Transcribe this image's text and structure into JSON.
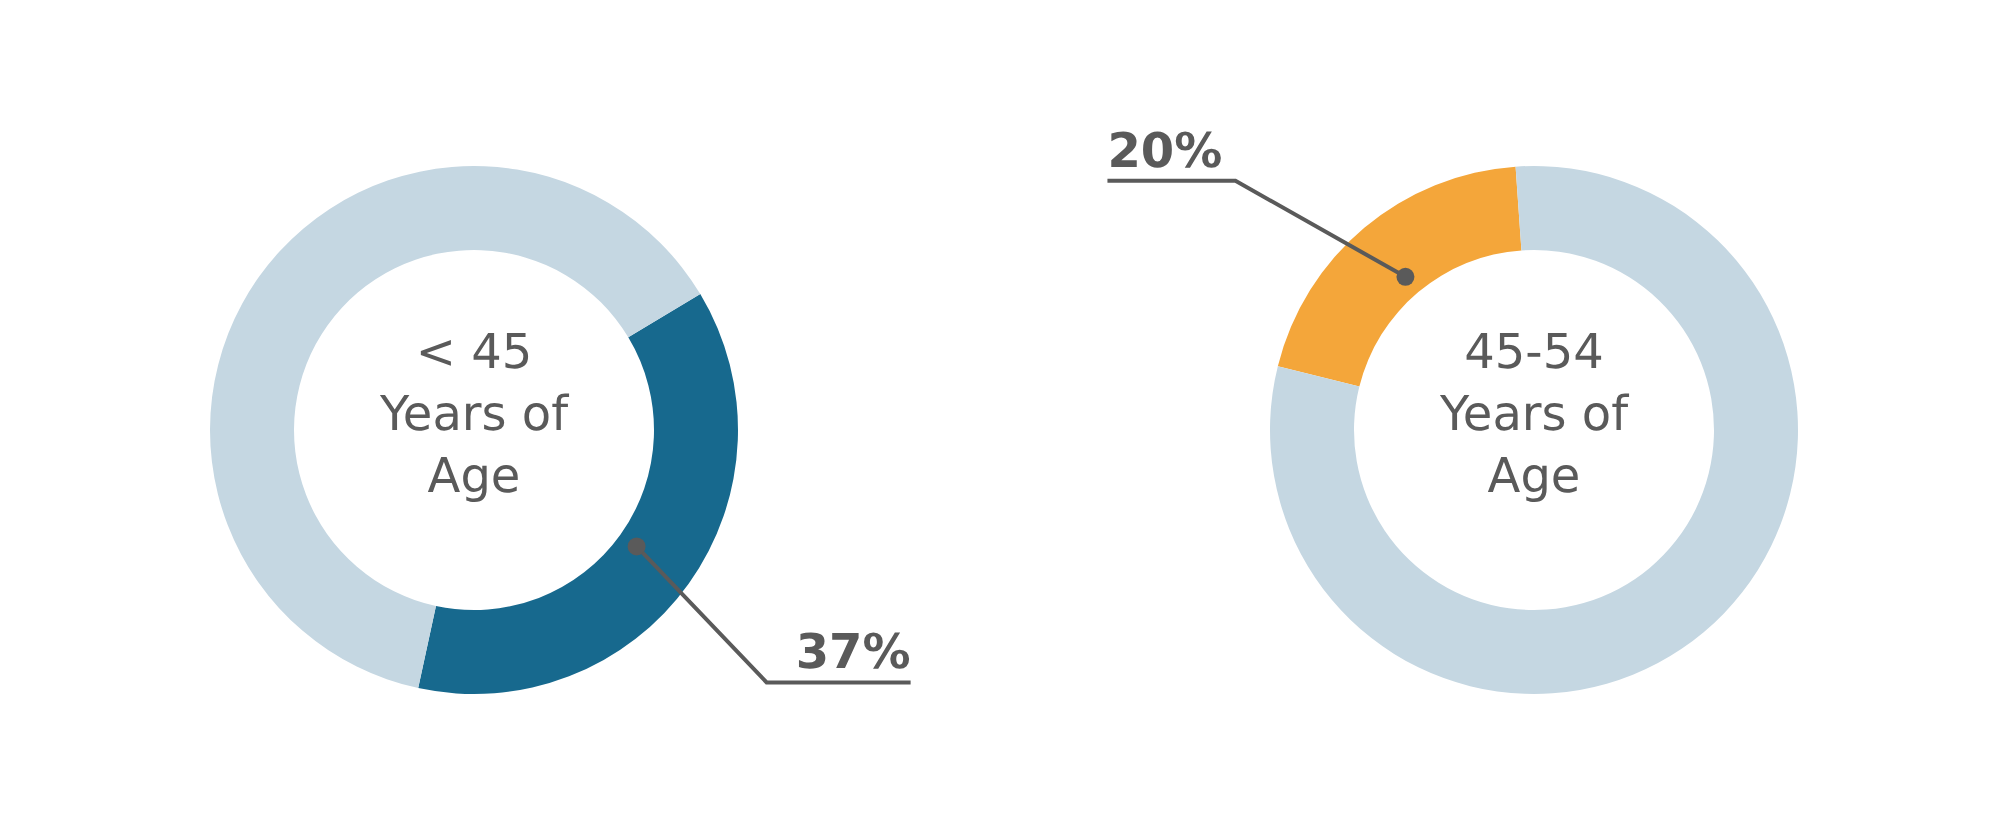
{
  "chart_data": [
    {
      "type": "donut",
      "title": "< 45\nYears of\nAge",
      "categories": [
        null,
        null
      ],
      "values": [
        37,
        63
      ],
      "colors": [
        "#17698e",
        "#c5d7e2"
      ],
      "value_labels": [
        "37%",
        null
      ]
    },
    {
      "type": "donut",
      "title": "45-54\nYears of\nAge",
      "categories": [
        null,
        null
      ],
      "values": [
        20,
        80
      ],
      "colors": [
        "#f4a63a",
        "#c5d7e2"
      ],
      "value_labels": [
        "20%",
        null
      ]
    }
  ]
}
